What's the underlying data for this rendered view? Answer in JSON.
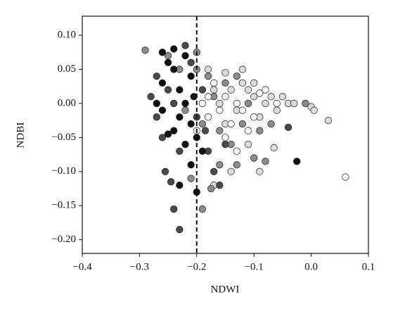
{
  "chart_data": {
    "type": "scatter",
    "x_label": "NDWI",
    "y_label": "NDBI",
    "xlim": [
      -0.4,
      0.1
    ],
    "ylim": [
      -0.22,
      0.128
    ],
    "xticks": [
      {
        "value": -0.4,
        "label": "−0.4"
      },
      {
        "value": -0.3,
        "label": "−0.3"
      },
      {
        "value": -0.2,
        "label": "−0.2"
      },
      {
        "value": -0.1,
        "label": "−0.1"
      },
      {
        "value": 0,
        "label": "0.0"
      },
      0.1
    ],
    "yticks": [
      {
        "value": -0.2,
        "label": "−0.20"
      },
      {
        "value": -0.15,
        "label": "−0.15"
      },
      {
        "value": -0.1,
        "label": "−0.10"
      },
      {
        "value": -0.05,
        "label": "−0.05"
      },
      {
        "value": 0,
        "label": "0.00"
      },
      {
        "value": 0.05,
        "label": "0.05"
      },
      {
        "value": 0.1,
        "label": "0.10"
      }
    ],
    "vline": -0.2,
    "series": [
      {
        "color": "#dcdcdc",
        "x": [
          -0.18,
          -0.17,
          -0.16,
          -0.15,
          -0.14,
          -0.13,
          -0.12,
          -0.11,
          -0.1,
          -0.09,
          -0.08,
          -0.07,
          -0.06,
          -0.05,
          -0.04,
          -0.03,
          0.0,
          0.005,
          0.03,
          -0.11,
          -0.09,
          -0.14,
          -0.17,
          -0.12,
          -0.15,
          -0.065,
          -0.1
        ],
        "values": [
          0.05,
          0.02,
          0.0,
          0.045,
          0.02,
          -0.01,
          0.03,
          0.02,
          0.01,
          -0.02,
          0.0,
          0.01,
          -0.01,
          0.01,
          0.0,
          0.0,
          -0.005,
          -0.01,
          -0.025,
          -0.06,
          -0.1,
          -0.1,
          -0.12,
          0.05,
          -0.03,
          -0.065,
          0.03
        ]
      },
      {
        "color": "#8c8c8c",
        "x": [
          -0.29,
          -0.25,
          -0.23,
          -0.22,
          -0.2,
          -0.19,
          -0.18,
          -0.17,
          -0.16,
          -0.15,
          -0.14,
          -0.13,
          -0.12,
          -0.11,
          -0.1,
          -0.08,
          -0.01,
          -0.19,
          -0.21,
          -0.16,
          -0.13,
          -0.09,
          -0.07,
          -0.2,
          -0.175
        ],
        "values": [
          0.078,
          0.07,
          0.05,
          -0.01,
          0.05,
          -0.03,
          0.04,
          0.01,
          -0.04,
          0.03,
          -0.06,
          -0.09,
          -0.03,
          0.0,
          -0.08,
          -0.085,
          0.0,
          -0.155,
          -0.11,
          -0.09,
          0.04,
          -0.04,
          -0.03,
          0.075,
          -0.125
        ]
      },
      {
        "color": "#f7f7f7",
        "x": [
          -0.19,
          -0.18,
          -0.17,
          -0.16,
          -0.15,
          -0.14,
          -0.13,
          -0.12,
          -0.11,
          -0.1,
          -0.08,
          -0.06,
          0.06,
          -0.2,
          -0.18,
          -0.13,
          -0.15,
          -0.09
        ],
        "values": [
          0.0,
          -0.02,
          0.03,
          -0.01,
          0.01,
          -0.03,
          0.0,
          -0.01,
          -0.04,
          -0.02,
          0.02,
          0.0,
          -0.108,
          -0.04,
          0.01,
          -0.07,
          -0.05,
          0.015
        ]
      },
      {
        "color": "#4a4a4a",
        "x": [
          -0.28,
          -0.27,
          -0.26,
          -0.25,
          -0.24,
          -0.255,
          -0.245,
          -0.24,
          -0.23,
          -0.22,
          -0.21,
          -0.2,
          -0.19,
          -0.18,
          -0.17,
          -0.16,
          -0.04,
          -0.15,
          -0.27,
          -0.23,
          -0.185
        ],
        "values": [
          0.01,
          -0.02,
          -0.05,
          0.02,
          0.0,
          -0.1,
          -0.115,
          -0.155,
          -0.185,
          0.085,
          0.06,
          -0.02,
          0.02,
          -0.07,
          -0.1,
          -0.12,
          -0.035,
          -0.06,
          0.04,
          -0.07,
          -0.04
        ]
      },
      {
        "color": "#111111",
        "x": [
          -0.27,
          -0.26,
          -0.25,
          -0.24,
          -0.23,
          -0.22,
          -0.21,
          -0.26,
          -0.24,
          -0.22,
          -0.25,
          -0.23,
          -0.21,
          -0.2,
          -0.23,
          -0.2,
          -0.025,
          -0.205,
          -0.24,
          -0.26,
          -0.22,
          -0.19,
          -0.21
        ],
        "values": [
          0.0,
          0.03,
          0.06,
          -0.04,
          0.02,
          0.07,
          -0.03,
          -0.01,
          0.05,
          -0.06,
          -0.045,
          -0.02,
          0.04,
          -0.05,
          -0.12,
          -0.13,
          -0.085,
          0.01,
          0.08,
          0.075,
          0.0,
          -0.07,
          -0.09
        ]
      }
    ]
  }
}
